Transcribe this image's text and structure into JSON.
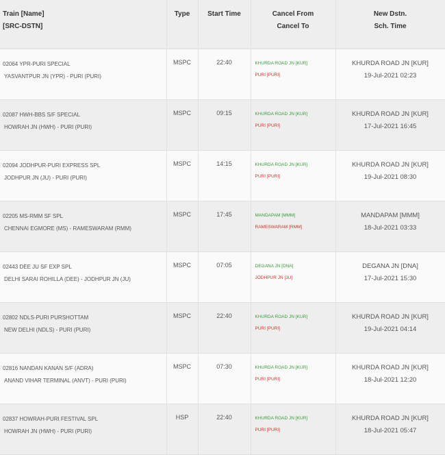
{
  "headers": {
    "train": [
      "Train [Name]",
      "[SRC-DSTN]"
    ],
    "type": "Type",
    "start_time": "Start Time",
    "cancel": [
      "Cancel From",
      "Cancel To"
    ],
    "new_dstn": [
      "New Dstn.",
      "Sch. Time"
    ]
  },
  "colors": {
    "cancel_from": "#3a9a3a",
    "cancel_to": "#c0392b"
  },
  "rows": [
    {
      "train": "02064 YPR-PURI SPECIAL",
      "route": "YASVANTPUR JN (YPR) - PURI (PURI)",
      "type": "MSPC",
      "start": "22:40",
      "cancel_from": "KHURDA ROAD JN [KUR]",
      "cancel_to": "PURI [PURI]",
      "new_dstn": "KHURDA ROAD JN [KUR]",
      "sch_time": "19-Jul-2021 02:23"
    },
    {
      "train": "02087 HWH-BBS S/F SPECIAL",
      "route": "HOWRAH JN (HWH) - PURI (PURI)",
      "type": "MSPC",
      "start": "09:15",
      "cancel_from": "KHURDA ROAD JN [KUR]",
      "cancel_to": "PURI [PURI]",
      "new_dstn": "KHURDA ROAD JN [KUR]",
      "sch_time": "17-Jul-2021 16:45"
    },
    {
      "train": "02094 JODHPUR-PURI EXPRESS SPL",
      "route": "JODHPUR JN (JU) - PURI (PURI)",
      "type": "MSPC",
      "start": "14:15",
      "cancel_from": "KHURDA ROAD JN [KUR]",
      "cancel_to": "PURI [PURI]",
      "new_dstn": "KHURDA ROAD JN [KUR]",
      "sch_time": "19-Jul-2021 08:30"
    },
    {
      "train": "02205 MS-RMM SF SPL",
      "route": "CHENNAI EGMORE (MS) - RAMESWARAM (RMM)",
      "type": "MSPC",
      "start": "17:45",
      "cancel_from": "MANDAPAM [MMM]",
      "cancel_to": "RAMESWARAM [RMM]",
      "new_dstn": "MANDAPAM [MMM]",
      "sch_time": "18-Jul-2021 03:33"
    },
    {
      "train": "02443 DEE JU SF EXP SPL",
      "route": "DELHI SARAI ROHILLA (DEE) - JODHPUR JN (JU)",
      "type": "MSPC",
      "start": "07:05",
      "cancel_from": "DEGANA JN [DNA]",
      "cancel_to": "JODHPUR JN [JU]",
      "new_dstn": "DEGANA JN [DNA]",
      "sch_time": "17-Jul-2021 15:30"
    },
    {
      "train": "02802 NDLS-PURI PURSHOTTAM",
      "route": "NEW DELHI (NDLS) - PURI (PURI)",
      "type": "MSPC",
      "start": "22:40",
      "cancel_from": "KHURDA ROAD JN [KUR]",
      "cancel_to": "PURI [PURI]",
      "new_dstn": "KHURDA ROAD JN [KUR]",
      "sch_time": "19-Jul-2021 04:14"
    },
    {
      "train": "02816 NANDAN KANAN S/F (ADRA)",
      "route": "ANAND VIHAR TERMINAL (ANVT) - PURI (PURI)",
      "type": "MSPC",
      "start": "07:30",
      "cancel_from": "KHURDA ROAD JN [KUR]",
      "cancel_to": "PURI [PURI]",
      "new_dstn": "KHURDA ROAD JN [KUR]",
      "sch_time": "18-Jul-2021 12:20"
    },
    {
      "train": "02837 HOWRAH-PURI FESTIVAL SPL",
      "route": "HOWRAH JN (HWH) - PURI (PURI)",
      "type": "HSP",
      "start": "22:40",
      "cancel_from": "KHURDA ROAD JN [KUR]",
      "cancel_to": "PURI [PURI]",
      "new_dstn": "KHURDA ROAD JN [KUR]",
      "sch_time": "18-Jul-2021 05:47"
    }
  ]
}
